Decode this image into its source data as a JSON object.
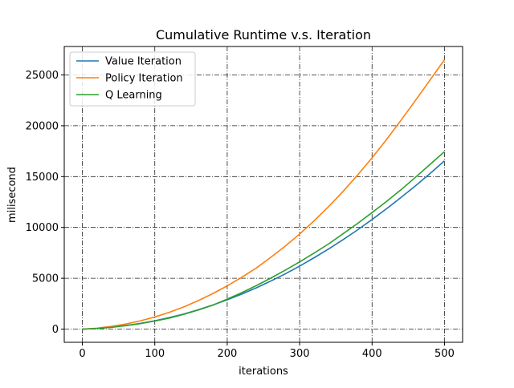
{
  "chart_data": {
    "type": "line",
    "title": "Cumulative Runtime v.s. Iteration",
    "xlabel": "iterations",
    "ylabel": "milisecond",
    "xlim": [
      -25,
      525
    ],
    "ylim": [
      -1300,
      27800
    ],
    "xticks": [
      0,
      100,
      200,
      300,
      400,
      500
    ],
    "yticks": [
      0,
      5000,
      10000,
      15000,
      20000,
      25000
    ],
    "grid": true,
    "grid_style": "dash-dot",
    "legend_position": "upper-left",
    "x": [
      0,
      20,
      40,
      60,
      80,
      100,
      120,
      140,
      160,
      180,
      200,
      220,
      240,
      260,
      280,
      300,
      320,
      340,
      360,
      380,
      400,
      420,
      440,
      460,
      480,
      500
    ],
    "series": [
      {
        "name": "Value Iteration",
        "color": "#1f77b4",
        "values": [
          0,
          60,
          180,
          350,
          560,
          820,
          1130,
          1480,
          1900,
          2370,
          2880,
          3440,
          4050,
          4720,
          5430,
          6200,
          7020,
          7880,
          8800,
          9760,
          10780,
          11840,
          12950,
          14100,
          15300,
          16550
        ]
      },
      {
        "name": "Policy Iteration",
        "color": "#ff7f0e",
        "values": [
          0,
          90,
          260,
          500,
          810,
          1190,
          1650,
          2180,
          2800,
          3490,
          4250,
          5090,
          6000,
          7050,
          8150,
          9350,
          10650,
          12050,
          13550,
          15150,
          16850,
          18650,
          20550,
          22500,
          24500,
          26500
        ]
      },
      {
        "name": "Q Learning",
        "color": "#2ca02c",
        "values": [
          0,
          60,
          170,
          340,
          540,
          790,
          1080,
          1450,
          1880,
          2350,
          2950,
          3580,
          4270,
          5010,
          5790,
          6610,
          7480,
          8380,
          9380,
          10390,
          11460,
          12560,
          13710,
          14940,
          16200,
          17460
        ]
      }
    ]
  }
}
